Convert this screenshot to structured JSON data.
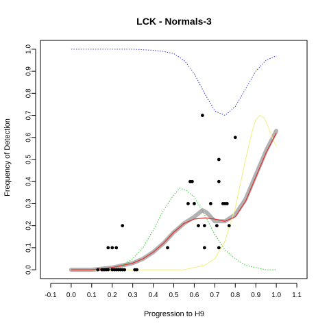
{
  "chart_data": {
    "type": "scatter",
    "title": "LCK - Normals-3",
    "xlabel": "Progression to H9",
    "ylabel": "Frequency of Detection",
    "xlim": [
      -0.15,
      1.15
    ],
    "ylim": [
      -0.04,
      1.04
    ],
    "xticks": [
      "-0.1",
      "0.0",
      "0.1",
      "0.2",
      "0.3",
      "0.4",
      "0.5",
      "0.6",
      "0.7",
      "0.8",
      "0.9",
      "1.0",
      "1.1"
    ],
    "yticks": [
      "0.0",
      "0.1",
      "0.2",
      "0.3",
      "0.4",
      "0.5",
      "0.6",
      "0.7",
      "0.8",
      "0.9",
      "1.0"
    ],
    "grid": false,
    "colors": {
      "points": "#000000",
      "gray_band": "#aaaaaa",
      "fit": "#e03030",
      "blue_curve": "#3a3ae0",
      "green_curve": "#2ecc2e",
      "yellow_curve": "#f0f07a",
      "plot_bg": "#ffffff"
    },
    "scatter_points": [
      {
        "x": 0.13,
        "y": 0.0
      },
      {
        "x": 0.15,
        "y": 0.0
      },
      {
        "x": 0.16,
        "y": 0.0
      },
      {
        "x": 0.17,
        "y": 0.0
      },
      {
        "x": 0.18,
        "y": 0.0
      },
      {
        "x": 0.2,
        "y": 0.0
      },
      {
        "x": 0.21,
        "y": 0.0
      },
      {
        "x": 0.22,
        "y": 0.0
      },
      {
        "x": 0.23,
        "y": 0.0
      },
      {
        "x": 0.24,
        "y": 0.0
      },
      {
        "x": 0.25,
        "y": 0.0
      },
      {
        "x": 0.26,
        "y": 0.0
      },
      {
        "x": 0.31,
        "y": 0.0
      },
      {
        "x": 0.32,
        "y": 0.0
      },
      {
        "x": 0.18,
        "y": 0.1
      },
      {
        "x": 0.2,
        "y": 0.1
      },
      {
        "x": 0.22,
        "y": 0.1
      },
      {
        "x": 0.25,
        "y": 0.2
      },
      {
        "x": 0.47,
        "y": 0.1
      },
      {
        "x": 0.57,
        "y": 0.3
      },
      {
        "x": 0.58,
        "y": 0.4
      },
      {
        "x": 0.59,
        "y": 0.4
      },
      {
        "x": 0.6,
        "y": 0.3
      },
      {
        "x": 0.62,
        "y": 0.2
      },
      {
        "x": 0.64,
        "y": 0.7
      },
      {
        "x": 0.65,
        "y": 0.1
      },
      {
        "x": 0.65,
        "y": 0.2
      },
      {
        "x": 0.68,
        "y": 0.3
      },
      {
        "x": 0.71,
        "y": 0.2
      },
      {
        "x": 0.72,
        "y": 0.4
      },
      {
        "x": 0.72,
        "y": 0.5
      },
      {
        "x": 0.72,
        "y": 0.1
      },
      {
        "x": 0.74,
        "y": 0.3
      },
      {
        "x": 0.75,
        "y": 0.3
      },
      {
        "x": 0.76,
        "y": 0.3
      },
      {
        "x": 0.77,
        "y": 0.2
      },
      {
        "x": 0.8,
        "y": 0.6
      }
    ],
    "fit_curve": {
      "x": [
        0.0,
        0.1,
        0.2,
        0.25,
        0.3,
        0.35,
        0.4,
        0.45,
        0.5,
        0.55,
        0.6,
        0.65,
        0.7,
        0.75,
        0.8,
        0.85,
        0.9,
        0.95,
        1.0
      ],
      "y": [
        0.0,
        0.0,
        0.01,
        0.02,
        0.03,
        0.05,
        0.08,
        0.12,
        0.17,
        0.21,
        0.23,
        0.235,
        0.23,
        0.22,
        0.24,
        0.31,
        0.42,
        0.53,
        0.62
      ]
    },
    "gray_band": {
      "x": [
        0.0,
        0.1,
        0.2,
        0.25,
        0.3,
        0.35,
        0.4,
        0.45,
        0.5,
        0.55,
        0.6,
        0.64,
        0.66,
        0.7,
        0.75,
        0.8,
        0.85,
        0.9,
        0.95,
        1.0
      ],
      "y": [
        0.0,
        0.0,
        0.01,
        0.02,
        0.03,
        0.05,
        0.08,
        0.12,
        0.17,
        0.21,
        0.24,
        0.27,
        0.26,
        0.22,
        0.22,
        0.25,
        0.32,
        0.43,
        0.54,
        0.63
      ]
    },
    "blue_curve": {
      "x": [
        0.0,
        0.1,
        0.2,
        0.3,
        0.4,
        0.45,
        0.5,
        0.55,
        0.6,
        0.65,
        0.7,
        0.75,
        0.8,
        0.85,
        0.9,
        0.95,
        1.0
      ],
      "y": [
        1.0,
        1.0,
        1.0,
        1.0,
        0.995,
        0.99,
        0.98,
        0.95,
        0.89,
        0.8,
        0.72,
        0.7,
        0.74,
        0.82,
        0.9,
        0.95,
        0.97
      ]
    },
    "green_curve": {
      "x": [
        0.0,
        0.1,
        0.2,
        0.25,
        0.3,
        0.35,
        0.4,
        0.45,
        0.5,
        0.53,
        0.56,
        0.6,
        0.65,
        0.7,
        0.75,
        0.8,
        0.85,
        0.9,
        0.95,
        1.0
      ],
      "y": [
        0.0,
        0.0,
        0.01,
        0.02,
        0.05,
        0.1,
        0.18,
        0.27,
        0.34,
        0.37,
        0.36,
        0.33,
        0.25,
        0.16,
        0.09,
        0.05,
        0.02,
        0.01,
        0.0,
        0.0
      ]
    },
    "yellow_curve": {
      "x": [
        0.0,
        0.2,
        0.4,
        0.5,
        0.55,
        0.6,
        0.65,
        0.7,
        0.75,
        0.8,
        0.85,
        0.88,
        0.9,
        0.92,
        0.94,
        0.96,
        0.98,
        1.0
      ],
      "y": [
        0.0,
        0.0,
        0.0,
        0.0,
        0.0,
        0.01,
        0.02,
        0.05,
        0.13,
        0.28,
        0.5,
        0.62,
        0.68,
        0.7,
        0.69,
        0.65,
        0.6,
        0.56
      ]
    }
  }
}
